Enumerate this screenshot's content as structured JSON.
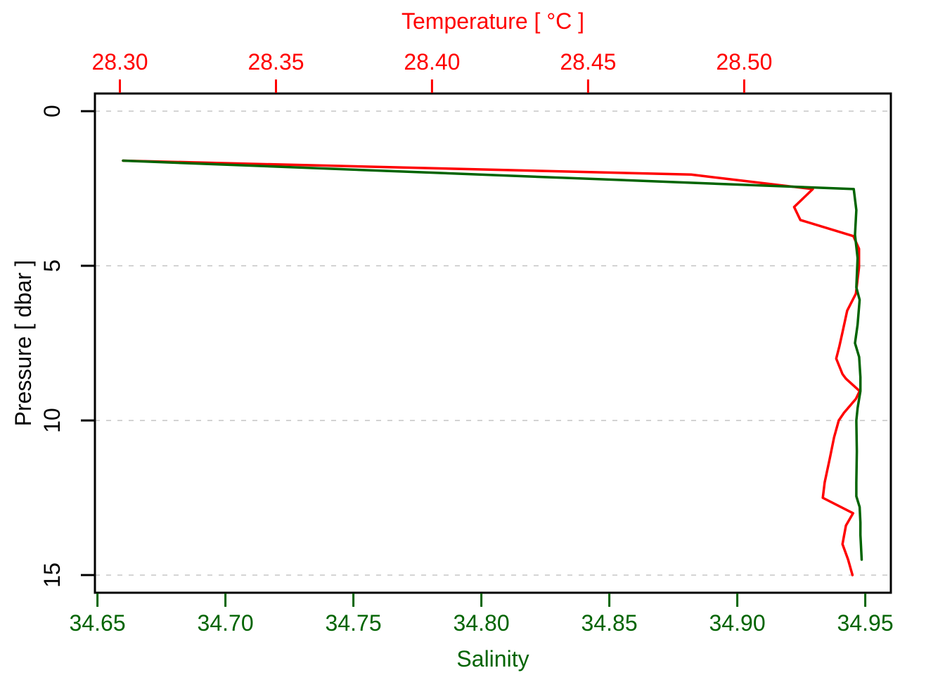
{
  "chart_data": {
    "type": "line",
    "variant": "ctd-vertical-profile",
    "title": "",
    "background_color": "#FFFFFF",
    "frame_color": "#000000",
    "grid": {
      "show": true,
      "style": "dashed",
      "color": "#D3D3D3",
      "at_pressures": [
        0,
        5,
        10,
        15
      ]
    },
    "axes": {
      "top": {
        "label": "Temperature [ °C ]",
        "color": "#FF0000",
        "min": 28.292,
        "max": 28.547,
        "ticks": [
          28.3,
          28.35,
          28.4,
          28.45,
          28.5
        ],
        "tick_labels": [
          "28.30",
          "28.35",
          "28.40",
          "28.45",
          "28.50"
        ]
      },
      "bottom": {
        "label": "Salinity",
        "color": "#006400",
        "min": 34.649,
        "max": 34.96,
        "ticks": [
          34.65,
          34.7,
          34.75,
          34.8,
          34.85,
          34.9,
          34.95
        ],
        "tick_labels": [
          "34.65",
          "34.70",
          "34.75",
          "34.80",
          "34.85",
          "34.90",
          "34.95"
        ]
      },
      "left": {
        "label": "Pressure [ dbar ]",
        "color": "#000000",
        "min": -0.57,
        "max": 15.57,
        "ticks": [
          0,
          5,
          10,
          15
        ],
        "tick_labels": [
          "0",
          "5",
          "10",
          "15"
        ],
        "tick_label_rotation": -90
      }
    },
    "series": [
      {
        "name": "temperature",
        "axis": "top",
        "color": "#FF0000",
        "line_width": 3.5,
        "points": [
          [
            28.301,
            1.6
          ],
          [
            28.483,
            2.05
          ],
          [
            28.522,
            2.52
          ],
          [
            28.516,
            3.1
          ],
          [
            28.518,
            3.52
          ],
          [
            28.535,
            4.04
          ],
          [
            28.5368,
            4.45
          ],
          [
            28.5368,
            5.05
          ],
          [
            28.5358,
            5.9
          ],
          [
            28.533,
            6.45
          ],
          [
            28.5315,
            7.15
          ],
          [
            28.5305,
            7.6
          ],
          [
            28.5295,
            8.0
          ],
          [
            28.5315,
            8.5
          ],
          [
            28.5326,
            8.65
          ],
          [
            28.537,
            9.05
          ],
          [
            28.5358,
            9.3
          ],
          [
            28.532,
            9.75
          ],
          [
            28.5303,
            10.0
          ],
          [
            28.5288,
            10.55
          ],
          [
            28.5275,
            11.2
          ],
          [
            28.5258,
            12.0
          ],
          [
            28.5252,
            12.5
          ],
          [
            28.5349,
            13.0
          ],
          [
            28.5326,
            13.4
          ],
          [
            28.5315,
            14.0
          ],
          [
            28.5333,
            14.5
          ],
          [
            28.5347,
            15.0
          ]
        ]
      },
      {
        "name": "salinity",
        "axis": "bottom",
        "color": "#006400",
        "line_width": 3.5,
        "points": [
          [
            34.66,
            1.6
          ],
          [
            34.9455,
            2.52
          ],
          [
            34.9465,
            3.2
          ],
          [
            34.946,
            4.0
          ],
          [
            34.947,
            4.75
          ],
          [
            34.9465,
            5.7
          ],
          [
            34.9478,
            6.1
          ],
          [
            34.947,
            6.9
          ],
          [
            34.946,
            7.5
          ],
          [
            34.9476,
            7.95
          ],
          [
            34.9481,
            8.6
          ],
          [
            34.9481,
            9.05
          ],
          [
            34.947,
            9.6
          ],
          [
            34.9465,
            10.0
          ],
          [
            34.9467,
            11.0
          ],
          [
            34.9465,
            12.0
          ],
          [
            34.9465,
            12.45
          ],
          [
            34.9478,
            12.8
          ],
          [
            34.9481,
            13.3
          ],
          [
            34.9481,
            13.7
          ],
          [
            34.9486,
            14.5
          ]
        ]
      }
    ]
  }
}
